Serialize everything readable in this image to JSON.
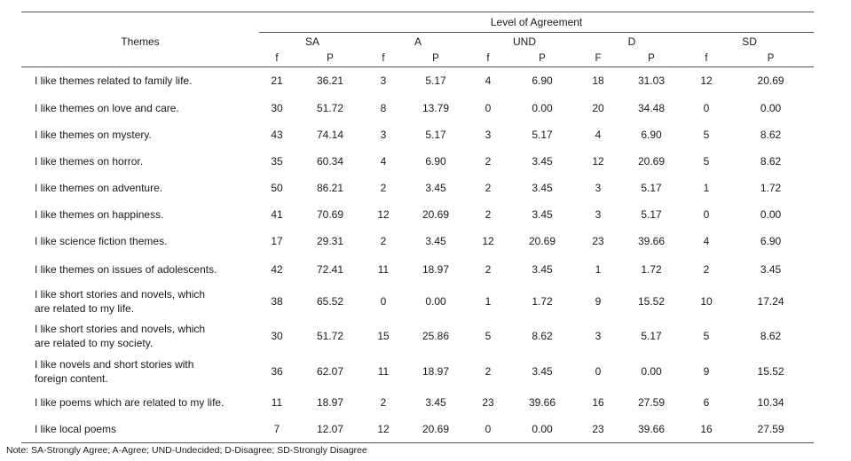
{
  "table": {
    "header": {
      "group_title": "Level of Agreement",
      "themes_label": "Themes",
      "categories": [
        "SA",
        "A",
        "UND",
        "D",
        "SD"
      ],
      "sub_labels": [
        "f",
        "P",
        "f",
        "P",
        "f",
        "P",
        "F",
        "P",
        "f",
        "P"
      ]
    },
    "rows": [
      {
        "theme": [
          "I like themes related to family life."
        ],
        "values": [
          "21",
          "36.21",
          "3",
          "5.17",
          "4",
          "6.90",
          "18",
          "31.03",
          "12",
          "20.69"
        ]
      },
      {
        "theme": [
          "I like themes on love and care."
        ],
        "values": [
          "30",
          "51.72",
          "8",
          "13.79",
          "0",
          "0.00",
          "20",
          "34.48",
          "0",
          "0.00"
        ]
      },
      {
        "theme": [
          "I like themes on mystery."
        ],
        "values": [
          "43",
          "74.14",
          "3",
          "5.17",
          "3",
          "5.17",
          "4",
          "6.90",
          "5",
          "8.62"
        ]
      },
      {
        "theme": [
          "I like themes on horror."
        ],
        "values": [
          "35",
          "60.34",
          "4",
          "6.90",
          "2",
          "3.45",
          "12",
          "20.69",
          "5",
          "8.62"
        ]
      },
      {
        "theme": [
          "I like themes on adventure."
        ],
        "values": [
          "50",
          "86.21",
          "2",
          "3.45",
          "2",
          "3.45",
          "3",
          "5.17",
          "1",
          "1.72"
        ]
      },
      {
        "theme": [
          "I like themes on happiness."
        ],
        "values": [
          "41",
          "70.69",
          "12",
          "20.69",
          "2",
          "3.45",
          "3",
          "5.17",
          "0",
          "0.00"
        ]
      },
      {
        "theme": [
          "I like science fiction themes."
        ],
        "values": [
          "17",
          "29.31",
          "2",
          "3.45",
          "12",
          "20.69",
          "23",
          "39.66",
          "4",
          "6.90"
        ]
      },
      {
        "theme": [
          "I like themes on issues of adolescents."
        ],
        "values": [
          "42",
          "72.41",
          "11",
          "18.97",
          "2",
          "3.45",
          "1",
          "1.72",
          "2",
          "3.45"
        ]
      },
      {
        "theme": [
          "I like short stories and novels, which",
          "are related to my life."
        ],
        "values": [
          "38",
          "65.52",
          "0",
          "0.00",
          "1",
          "1.72",
          "9",
          "15.52",
          "10",
          "17.24"
        ]
      },
      {
        "theme": [
          "I like short stories and novels, which",
          "are related to my society."
        ],
        "values": [
          "30",
          "51.72",
          "15",
          "25.86",
          "5",
          "8.62",
          "3",
          "5.17",
          "5",
          "8.62"
        ]
      },
      {
        "theme": [
          "I like novels and short stories with",
          "foreign content."
        ],
        "values": [
          "36",
          "62.07",
          "11",
          "18.97",
          "2",
          "3.45",
          "0",
          "0.00",
          "9",
          "15.52"
        ]
      },
      {
        "theme": [
          "I like poems which are related to my life."
        ],
        "values": [
          "11",
          "18.97",
          "2",
          "3.45",
          "23",
          "39.66",
          "16",
          "27.59",
          "6",
          "10.34"
        ]
      },
      {
        "theme": [
          "I like local poems"
        ],
        "values": [
          "7",
          "12.07",
          "12",
          "20.69",
          "0",
          "0.00",
          "23",
          "39.66",
          "16",
          "27.59"
        ]
      }
    ]
  },
  "note": "Note: SA-Strongly Agree; A-Agree; UND-Undecided; D-Disagree; SD-Strongly Disagree"
}
